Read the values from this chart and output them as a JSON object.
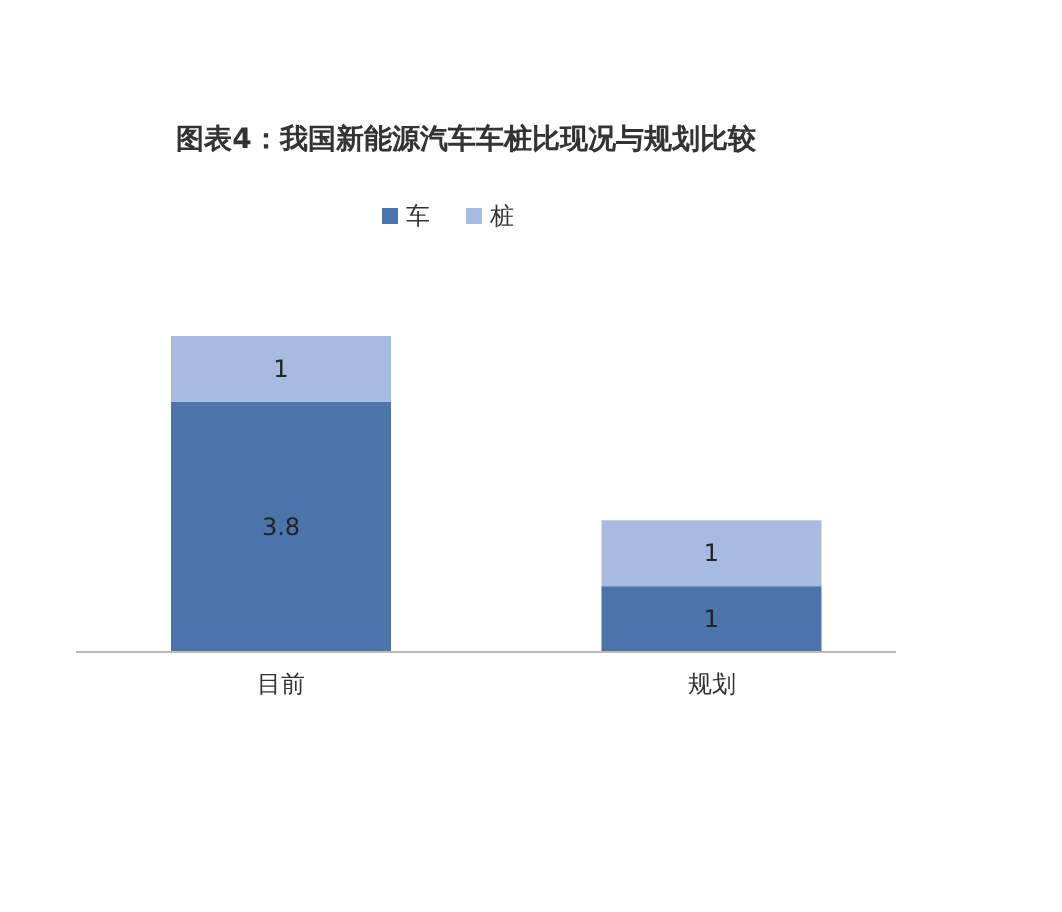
{
  "chart_data": {
    "type": "bar",
    "title": "图表4：我国新能源汽车车桩比现况与规划比较",
    "categories": [
      "目前",
      "规划"
    ],
    "stacked": true,
    "data_labels": true,
    "legend": "top",
    "series": [
      {
        "name": "车",
        "color": "#4a74aa",
        "values": [
          3.8,
          1
        ]
      },
      {
        "name": "桩",
        "color": "#a7bbe0",
        "values": [
          1,
          1
        ]
      }
    ]
  }
}
